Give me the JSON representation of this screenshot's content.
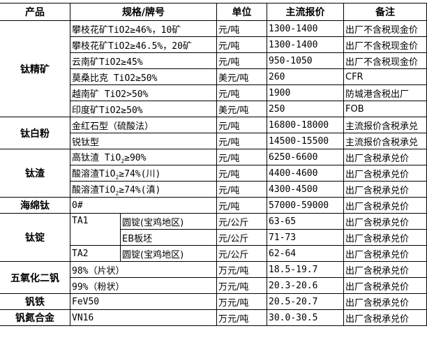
{
  "headers": [
    "产品",
    "规格/牌号",
    "单位",
    "主流报价",
    "备注"
  ],
  "groups": {
    "titanium_concentrate": {
      "product": "钛精矿",
      "rows": [
        {
          "spec": "攀枝花矿TiO2≥46%，10矿",
          "unit": "元/吨",
          "price": "1300-1400",
          "note": "出厂不含税现金价"
        },
        {
          "spec": "攀枝花矿TiO2≥46.5%，20矿",
          "unit": "元/吨",
          "price": "1300-1400",
          "note": "出厂不含税现金价"
        },
        {
          "spec": "云南矿TiO2≥45%",
          "unit": "元/吨",
          "price": "950-1050",
          "note": "出厂不含税现金价"
        },
        {
          "spec": "莫桑比克 TiO2≥50%",
          "unit": "美元/吨",
          "price": "260",
          "note": "CFR"
        },
        {
          "spec": "越南矿 TiO2>50%",
          "unit": "元/吨",
          "price": "1900",
          "note": "防城港含税出厂"
        },
        {
          "spec": "印度矿TiO2≥50%",
          "unit": "美元/吨",
          "price": "250",
          "note": "FOB"
        }
      ]
    },
    "titanium_dioxide": {
      "product": "钛白粉",
      "rows": [
        {
          "spec": "金红石型（硫酸法）",
          "unit": "元/吨",
          "price": "16800-18000",
          "note": "主流报价含税承兑"
        },
        {
          "spec": "锐钛型",
          "unit": "元/吨",
          "price": "14500-15500",
          "note": "主流报价含税承兑"
        }
      ]
    },
    "titanium_slag": {
      "product": "钛渣",
      "rows": [
        {
          "spec_a": "高钛渣 TiO",
          "spec_sub": "2",
          "spec_b": "≥90%",
          "unit": "元/吨",
          "price": "6250-6600",
          "note": "出厂含税承兑价"
        },
        {
          "spec_a": "酸溶渣TiO",
          "spec_sub": "2",
          "spec_b": "≥74%(川)",
          "unit": "元/吨",
          "price": "4400-4600",
          "note": "出厂含税承兑价"
        },
        {
          "spec_a": "酸溶渣TiO",
          "spec_sub": "2",
          "spec_b": "≥74%(滇)",
          "unit": "元/吨",
          "price": "4300-4500",
          "note": "出厂含税承兑价"
        }
      ]
    },
    "sponge_titanium": {
      "product": "海绵钛",
      "rows": [
        {
          "spec": "0#",
          "unit": "元/吨",
          "price": "57000-59000",
          "note": "出厂含税承兑价"
        }
      ]
    },
    "titanium_ingot": {
      "product": "钛锭",
      "ta1": "TA1",
      "ta2": "TA2",
      "rows": [
        {
          "form": "圆锭(宝鸡地区)",
          "unit": "元/公斤",
          "price": "63-65",
          "note": "出厂含税承兑价"
        },
        {
          "form": "EB板坯",
          "unit": "元/公斤",
          "price": "71-73",
          "note": "出厂含税承兑价"
        },
        {
          "form": "圆锭(宝鸡地区)",
          "unit": "元/公斤",
          "price": "62-64",
          "note": "出厂含税承兑价"
        }
      ]
    },
    "vanadium_pentoxide": {
      "product": "五氧化二钒",
      "rows": [
        {
          "spec": "98%（片状）",
          "unit": "万元/吨",
          "price": "18.5-19.7",
          "note": "出厂含税承兑价"
        },
        {
          "spec": "99%（粉状）",
          "unit": "万元/吨",
          "price": "20.3-20.6",
          "note": "出厂含税承兑价"
        }
      ]
    },
    "ferrovanadium": {
      "product": "钒铁",
      "rows": [
        {
          "spec": "FeV50",
          "unit": "万元/吨",
          "price": "20.5-20.7",
          "note": "出厂含税承兑价"
        }
      ]
    },
    "vanadium_nitrogen": {
      "product": "钒氮合金",
      "rows": [
        {
          "spec": "VN16",
          "unit": "万元/吨",
          "price": "30.0-30.5",
          "note": "出厂含税承兑价"
        }
      ]
    }
  }
}
